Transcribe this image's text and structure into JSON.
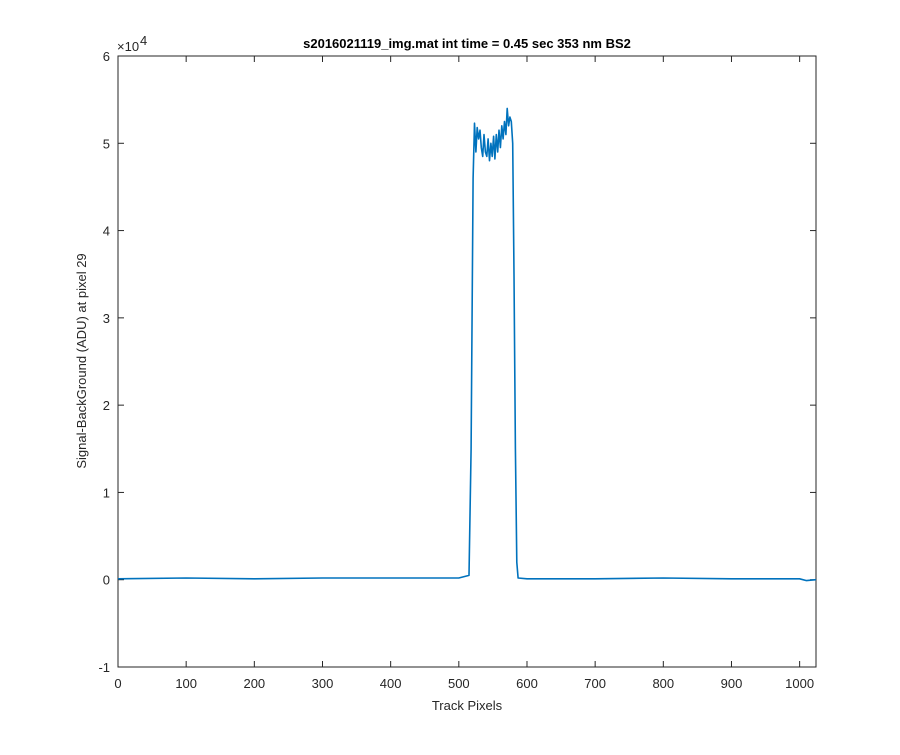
{
  "chart_data": {
    "type": "line",
    "title": "s2016021119_img.mat int time = 0.45 sec  353 nm BS2",
    "xlabel": "Track Pixels",
    "ylabel": "Signal-BackGround (ADU) at pixel 29",
    "y_exponent_label": "×10",
    "y_exponent_power": "4",
    "xlim": [
      0,
      1024
    ],
    "ylim": [
      -1,
      6
    ],
    "y_scale_factor": 10000,
    "x_ticks": [
      "0",
      "100",
      "200",
      "300",
      "400",
      "500",
      "600",
      "700",
      "800",
      "900",
      "1000"
    ],
    "y_ticks": [
      "-1",
      "0",
      "1",
      "2",
      "3",
      "4",
      "5",
      "6"
    ],
    "grid": false,
    "line_color": "#0072BD",
    "series": [
      {
        "x": [
          0,
          100,
          200,
          300,
          400,
          500,
          515,
          518,
          521,
          523,
          525,
          527,
          529,
          531,
          533,
          535,
          537,
          539,
          541,
          543,
          545,
          547,
          549,
          551,
          553,
          555,
          557,
          559,
          561,
          563,
          565,
          567,
          569,
          571,
          573,
          575,
          577,
          579,
          581,
          583,
          585,
          587,
          600,
          700,
          800,
          900,
          1000,
          1010,
          1024
        ],
        "y": [
          0.01,
          0.02,
          0.01,
          0.02,
          0.02,
          0.02,
          0.05,
          1.5,
          4.6,
          5.23,
          4.9,
          5.18,
          5.05,
          5.15,
          4.95,
          4.85,
          5.1,
          4.9,
          4.85,
          5.05,
          4.8,
          5.0,
          4.85,
          5.08,
          4.82,
          5.1,
          4.9,
          5.15,
          4.95,
          5.2,
          5.05,
          5.25,
          5.1,
          5.4,
          5.2,
          5.3,
          5.25,
          5.0,
          3.5,
          1.5,
          0.2,
          0.02,
          0.01,
          0.01,
          0.02,
          0.01,
          0.01,
          -0.01,
          0.0
        ]
      }
    ]
  }
}
